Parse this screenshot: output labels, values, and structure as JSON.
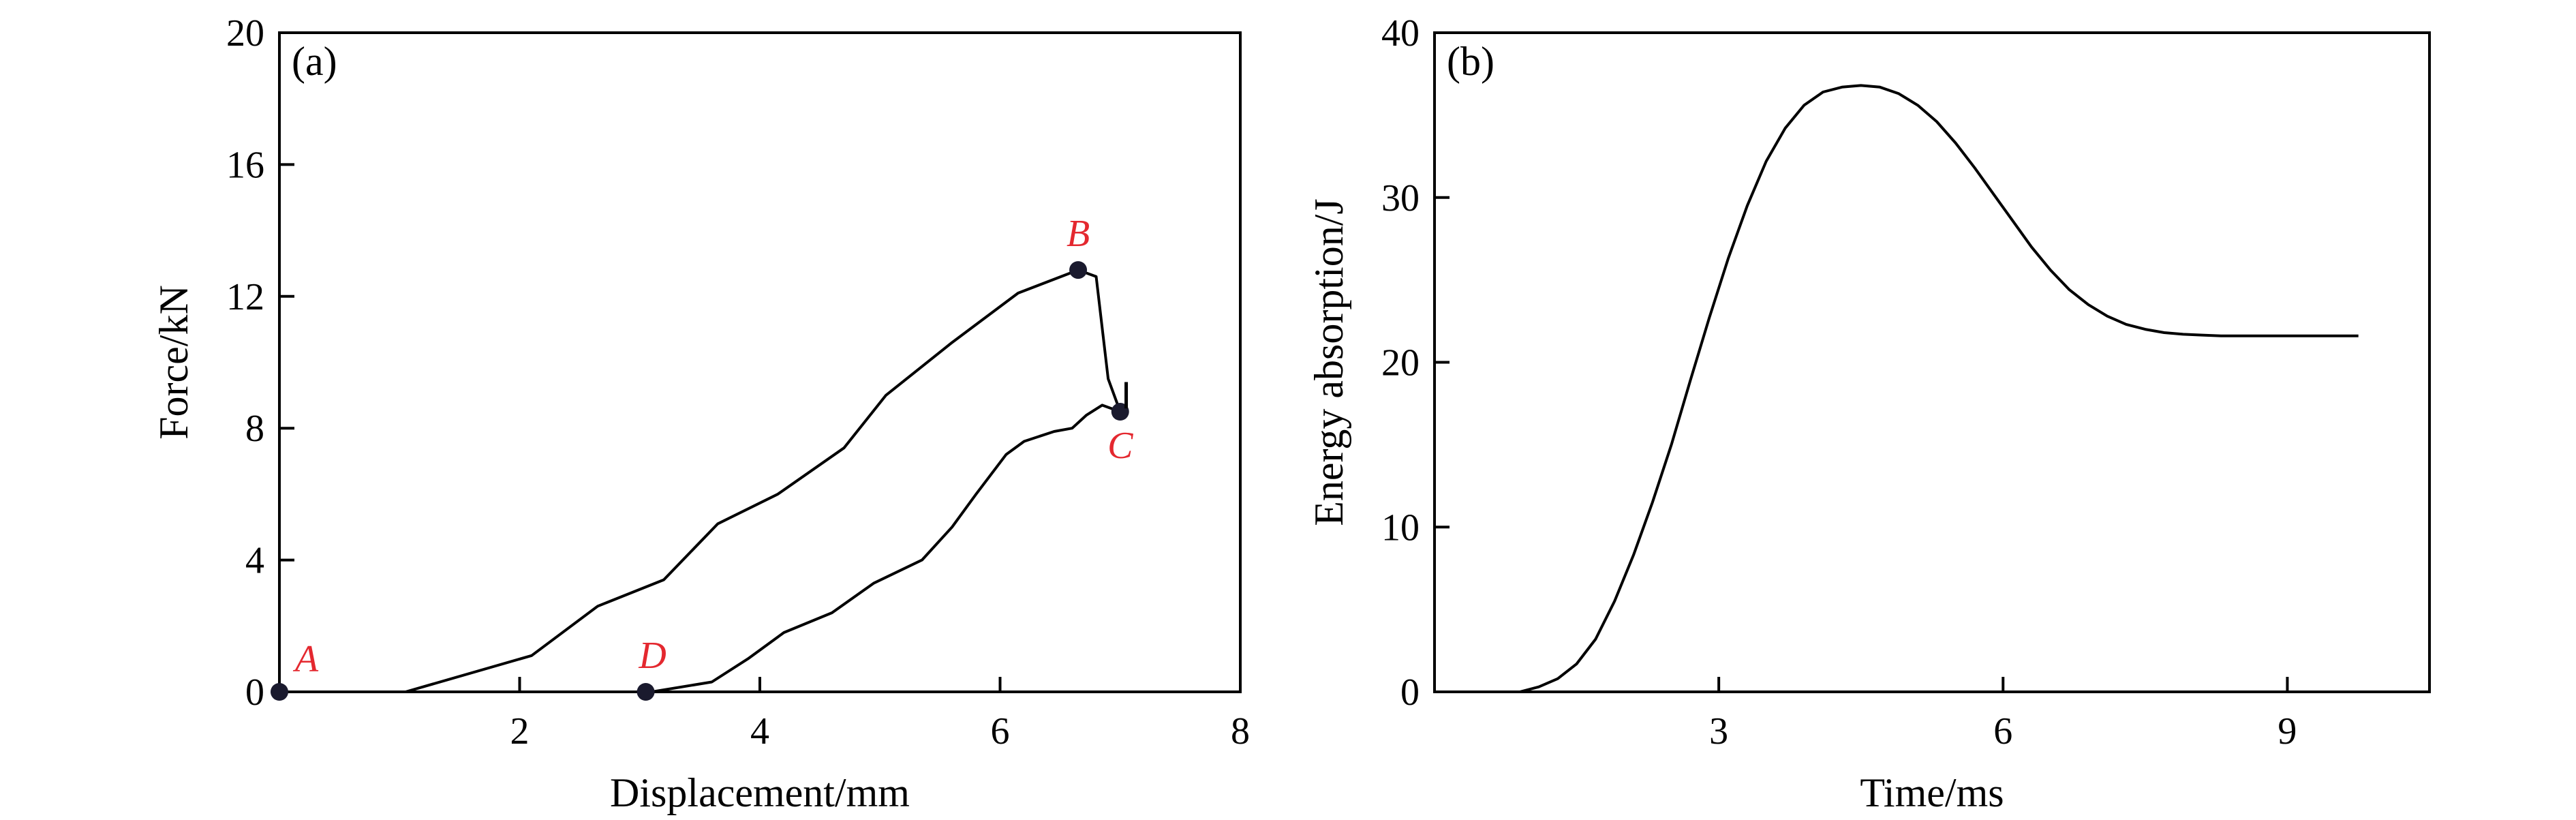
{
  "chart_data": [
    {
      "type": "line",
      "panel_label": "(a)",
      "xlabel": "Displacement/mm",
      "ylabel": "Force/kN",
      "xlim": [
        0,
        8
      ],
      "ylim": [
        0,
        20
      ],
      "xticks": [
        2,
        4,
        6,
        8
      ],
      "yticks": [
        0,
        4,
        8,
        12,
        16,
        20
      ],
      "series": [
        {
          "x": [
            0,
            1.05,
            2.1,
            2.65,
            3.2,
            3.65,
            4.15,
            4.7,
            5.05,
            5.6,
            6.15,
            6.65,
            6.8,
            6.9,
            7.0,
            6.85,
            6.72,
            6.6,
            6.45,
            6.2,
            6.05,
            5.8,
            5.6,
            5.35,
            4.95,
            4.6,
            4.2,
            3.9,
            3.6,
            3.1
          ],
          "y": [
            0,
            0,
            1.1,
            2.6,
            3.4,
            5.1,
            6.0,
            7.4,
            9.0,
            10.6,
            12.1,
            12.8,
            12.6,
            9.5,
            8.5,
            8.7,
            8.4,
            8.0,
            7.9,
            7.6,
            7.2,
            6.0,
            5.0,
            4.0,
            3.3,
            2.4,
            1.8,
            1.0,
            0.3,
            0
          ]
        }
      ],
      "points": [
        {
          "label": "A",
          "x": 0,
          "y": 0
        },
        {
          "label": "B",
          "x": 6.65,
          "y": 12.8
        },
        {
          "label": "C",
          "x": 7.0,
          "y": 8.5
        },
        {
          "label": "D",
          "x": 3.05,
          "y": 0
        }
      ],
      "grid": false
    },
    {
      "type": "line",
      "panel_label": "(b)",
      "xlabel": "Time/ms",
      "ylabel": "Energy absorption/J",
      "xlim": [
        0,
        10.5
      ],
      "ylim": [
        0,
        40
      ],
      "xticks": [
        3,
        6,
        9
      ],
      "yticks": [
        0,
        10,
        20,
        30,
        40
      ],
      "series": [
        {
          "x": [
            0.5,
            0.9,
            1.1,
            1.3,
            1.5,
            1.7,
            1.9,
            2.1,
            2.3,
            2.5,
            2.7,
            2.9,
            3.1,
            3.3,
            3.5,
            3.7,
            3.9,
            4.1,
            4.3,
            4.5,
            4.7,
            4.9,
            5.1,
            5.3,
            5.5,
            5.7,
            5.9,
            6.1,
            6.3,
            6.5,
            6.7,
            6.9,
            7.1,
            7.3,
            7.5,
            7.7,
            7.9,
            8.1,
            8.3,
            8.5,
            8.7,
            8.9,
            9.1,
            9.3,
            9.5,
            9.75
          ],
          "y": [
            0,
            0,
            0.3,
            0.8,
            1.7,
            3.2,
            5.5,
            8.3,
            11.5,
            15.0,
            18.9,
            22.7,
            26.3,
            29.5,
            32.2,
            34.2,
            35.6,
            36.4,
            36.7,
            36.8,
            36.7,
            36.3,
            35.6,
            34.6,
            33.3,
            31.8,
            30.2,
            28.6,
            27.0,
            25.6,
            24.4,
            23.5,
            22.8,
            22.3,
            22.0,
            21.8,
            21.7,
            21.65,
            21.6,
            21.6,
            21.6,
            21.6,
            21.6,
            21.6,
            21.6,
            21.6
          ]
        }
      ],
      "grid": false
    }
  ]
}
